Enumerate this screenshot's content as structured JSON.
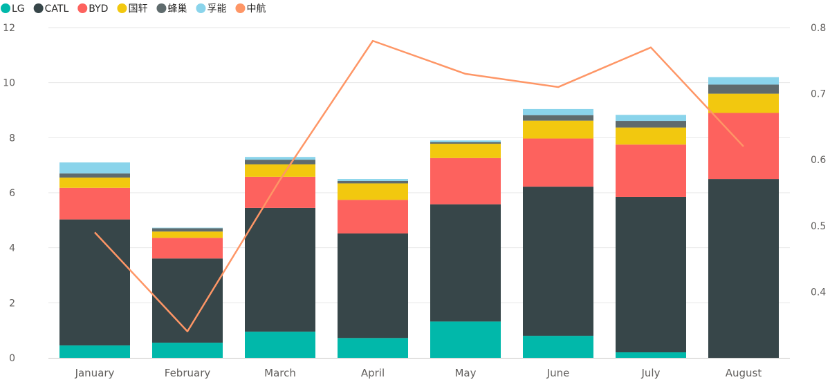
{
  "chart_data": {
    "type": "bar",
    "stacked": true,
    "title": "",
    "xlabel": "",
    "ylabel": "",
    "categories": [
      "January",
      "February",
      "March",
      "April",
      "May",
      "June",
      "July",
      "August"
    ],
    "series": [
      {
        "name": "LG",
        "color": "#01B8AA",
        "values": [
          0.45,
          0.55,
          0.95,
          0.72,
          1.32,
          0.8,
          0.2,
          0.0
        ]
      },
      {
        "name": "CATL",
        "color": "#374649",
        "values": [
          4.58,
          3.06,
          4.5,
          3.8,
          4.26,
          5.42,
          5.65,
          6.5
        ]
      },
      {
        "name": "BYD",
        "color": "#FD625E",
        "values": [
          1.15,
          0.75,
          1.13,
          1.22,
          1.68,
          1.75,
          1.9,
          2.4
        ]
      },
      {
        "name": "国轩",
        "color": "#F2C80F",
        "values": [
          0.37,
          0.23,
          0.45,
          0.6,
          0.52,
          0.65,
          0.62,
          0.7
        ]
      },
      {
        "name": "蜂巢",
        "color": "#5F6B6D",
        "values": [
          0.15,
          0.12,
          0.17,
          0.09,
          0.06,
          0.2,
          0.24,
          0.33
        ]
      },
      {
        "name": "孚能",
        "color": "#8AD4EB",
        "values": [
          0.4,
          0.02,
          0.1,
          0.07,
          0.06,
          0.22,
          0.22,
          0.27
        ]
      }
    ],
    "line_series": [
      {
        "name": "中航",
        "color": "#FE9666",
        "axis": "secondary",
        "values": [
          0.49,
          0.34,
          0.57,
          0.78,
          0.73,
          0.71,
          0.77,
          0.62
        ]
      }
    ],
    "ylim": [
      0,
      12
    ],
    "yticks": [
      0,
      2,
      4,
      6,
      8,
      10,
      12
    ],
    "y2lim": [
      0.3,
      0.8
    ],
    "y2ticks": [
      0.4,
      0.5,
      0.6,
      0.7,
      0.8
    ],
    "grid": true,
    "legend": "top-left"
  }
}
